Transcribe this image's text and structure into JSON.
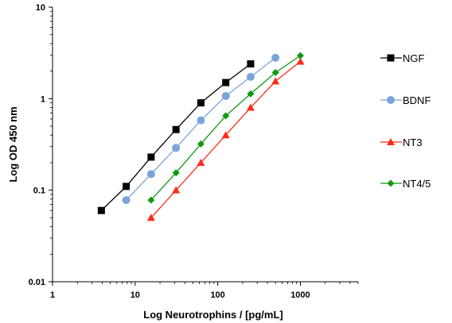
{
  "chart_data": {
    "type": "line",
    "xlabel": "Log Neurotrophins / [pg/mL]",
    "ylabel": "Log OD 450 nm",
    "xscale": "log",
    "yscale": "log",
    "xlim": [
      1,
      5000
    ],
    "ylim": [
      0.01,
      10
    ],
    "x_ticks": [
      1,
      10,
      100,
      1000
    ],
    "x_tick_labels": [
      "1",
      "10",
      "100",
      "1000"
    ],
    "y_ticks": [
      0.01,
      0.1,
      1,
      10
    ],
    "y_tick_labels": [
      "0.01",
      "0.1",
      "1",
      "10"
    ],
    "grid": false,
    "legend_position": "right",
    "series": [
      {
        "name": "NGF",
        "color": "#000000",
        "marker": "square",
        "x": [
          3.9,
          7.8,
          15.6,
          31.25,
          62.5,
          125,
          250
        ],
        "y": [
          0.06,
          0.11,
          0.23,
          0.46,
          0.9,
          1.5,
          2.4
        ]
      },
      {
        "name": "BDNF",
        "color": "#7aa4d8",
        "marker": "circle",
        "x": [
          7.8,
          15.6,
          31.25,
          62.5,
          125,
          250,
          500
        ],
        "y": [
          0.078,
          0.15,
          0.29,
          0.58,
          1.07,
          1.73,
          2.8
        ]
      },
      {
        "name": "NT3",
        "color": "#ff2a1a",
        "marker": "triangle",
        "x": [
          15.6,
          31.25,
          62.5,
          125,
          250,
          500,
          1000
        ],
        "y": [
          0.05,
          0.1,
          0.2,
          0.4,
          0.8,
          1.55,
          2.55
        ]
      },
      {
        "name": "NT4/5",
        "color": "#119911",
        "marker": "diamond",
        "x": [
          15.6,
          31.25,
          62.5,
          125,
          250,
          500,
          1000
        ],
        "y": [
          0.078,
          0.155,
          0.32,
          0.65,
          1.13,
          1.93,
          2.95
        ]
      }
    ]
  }
}
